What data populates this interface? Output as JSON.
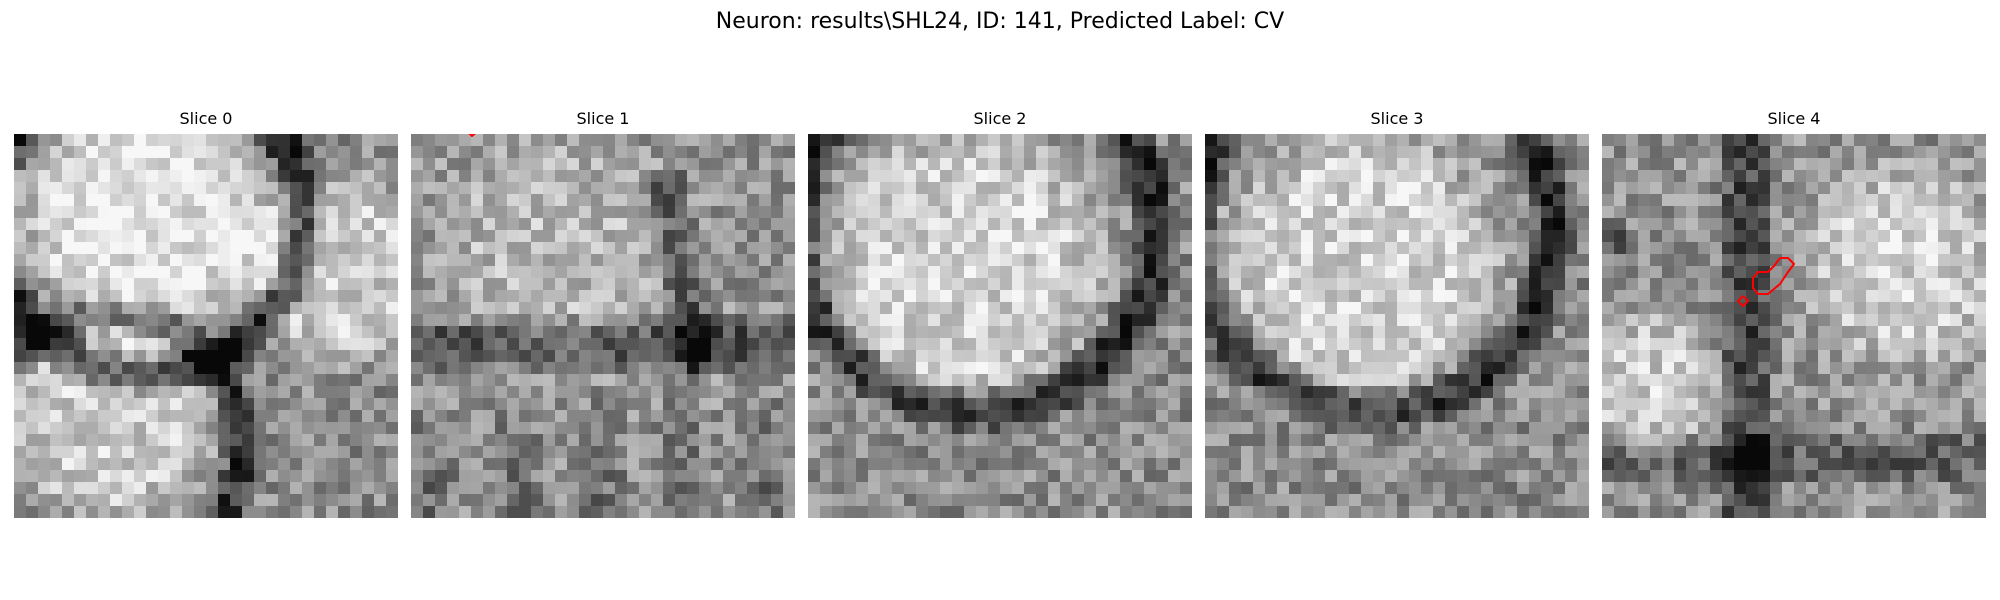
{
  "figure": {
    "title": "Neuron: results\\SHL24, ID: 141, Predicted Label: CV"
  },
  "panels": [
    {
      "title": "Slice 0",
      "seed": 11,
      "scene": "two-cells-ring",
      "has_contour": false
    },
    {
      "title": "Slice 1",
      "seed": 23,
      "scene": "band-dark-lower",
      "has_contour": true
    },
    {
      "title": "Slice 2",
      "seed": 37,
      "scene": "bright-blob-lower-band",
      "has_contour": false
    },
    {
      "title": "Slice 3",
      "seed": 51,
      "scene": "bright-blob-lower-band",
      "has_contour": false
    },
    {
      "title": "Slice 4",
      "seed": 67,
      "scene": "bright-right-dark-cross",
      "has_contour": true
    }
  ],
  "colors": {
    "contour": "#ff0000",
    "colormap": "gray"
  }
}
